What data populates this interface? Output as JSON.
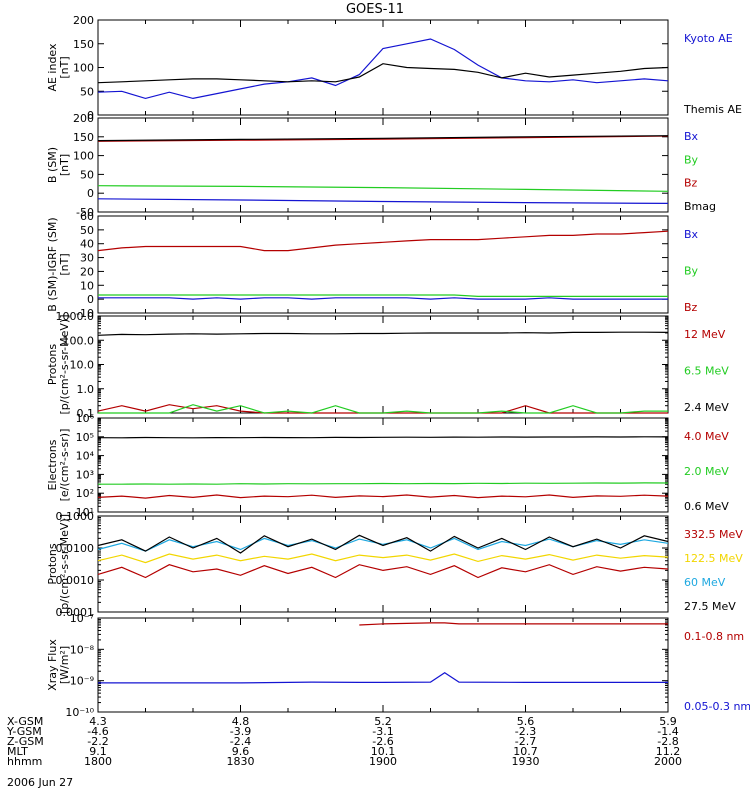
{
  "figure": {
    "title": "GOES-11",
    "date": "2006 Jun 27"
  },
  "colors": {
    "black": "#000000",
    "blue": "#1414d2",
    "red": "#b40000",
    "green": "#22cc22",
    "yellow": "#f2d600",
    "cyan": "#1ea8e0"
  },
  "orbit_table": {
    "row_labels": [
      "X-GSM",
      "Y-GSM",
      "Z-GSM",
      "MLT",
      "hhmm"
    ],
    "columns": [
      [
        "4.3",
        "-4.6",
        "-2.2",
        "9.1",
        "1800"
      ],
      [
        "4.8",
        "-3.9",
        "-2.4",
        "9.6",
        "1830"
      ],
      [
        "5.2",
        "-3.1",
        "-2.6",
        "10.1",
        "1900"
      ],
      [
        "5.6",
        "-2.3",
        "-2.7",
        "10.7",
        "1930"
      ],
      [
        "5.9",
        "-1.4",
        "-2.8",
        "11.2",
        "2000"
      ]
    ]
  },
  "chart_data": [
    {
      "type": "line",
      "id": "ae",
      "ylabel": [
        "AE index",
        "[nT]"
      ],
      "ylim": [
        0,
        200
      ],
      "scale": "linear",
      "yticks": [
        "0",
        "50",
        "100",
        "150",
        "200"
      ],
      "x": [
        1800,
        1805,
        1810,
        1815,
        1820,
        1825,
        1830,
        1835,
        1840,
        1845,
        1850,
        1855,
        1900,
        1905,
        1910,
        1915,
        1920,
        1925,
        1930,
        1935,
        1940,
        1945,
        1950,
        1955,
        2000
      ],
      "series": [
        {
          "name": "Kyoto AE",
          "color": "blue",
          "values": [
            48,
            50,
            35,
            48,
            35,
            45,
            55,
            65,
            70,
            78,
            62,
            85,
            140,
            150,
            160,
            138,
            105,
            78,
            72,
            70,
            74,
            68,
            72,
            76,
            72
          ]
        },
        {
          "name": "Themis AE",
          "color": "black",
          "values": [
            68,
            70,
            72,
            74,
            76,
            76,
            74,
            72,
            70,
            72,
            70,
            80,
            108,
            100,
            98,
            96,
            90,
            78,
            88,
            80,
            84,
            88,
            92,
            98,
            100
          ]
        }
      ]
    },
    {
      "type": "line",
      "id": "bsm",
      "ylabel": [
        "B (SM)",
        "[nT]"
      ],
      "ylim": [
        -50,
        200
      ],
      "scale": "linear",
      "yticks": [
        "-50",
        "0",
        "50",
        "100",
        "150",
        "200"
      ],
      "x": [
        1800,
        1830,
        1900,
        1930,
        2000
      ],
      "series": [
        {
          "name": "Bx",
          "color": "blue",
          "values": [
            -15,
            -18,
            -22,
            -25,
            -27
          ]
        },
        {
          "name": "By",
          "color": "green",
          "values": [
            20,
            18,
            15,
            10,
            5
          ]
        },
        {
          "name": "Bz",
          "color": "red",
          "values": [
            138,
            141,
            144,
            148,
            152
          ]
        },
        {
          "name": "Bmag",
          "color": "black",
          "values": [
            140,
            143,
            146,
            150,
            153
          ]
        }
      ]
    },
    {
      "type": "line",
      "id": "bigrf",
      "ylabel": [
        "B (SM)-IGRF (SM)",
        "[nT]"
      ],
      "ylim": [
        -10,
        60
      ],
      "scale": "linear",
      "yticks": [
        "-10",
        "0",
        "10",
        "20",
        "30",
        "40",
        "50",
        "60"
      ],
      "x": [
        1800,
        1805,
        1810,
        1815,
        1820,
        1825,
        1830,
        1835,
        1840,
        1845,
        1850,
        1855,
        1900,
        1905,
        1910,
        1915,
        1920,
        1925,
        1930,
        1935,
        1940,
        1945,
        1950,
        1955,
        2000
      ],
      "series": [
        {
          "name": "Bx",
          "color": "blue",
          "values": [
            1,
            1,
            1,
            1,
            0,
            1,
            0,
            1,
            1,
            0,
            1,
            1,
            1,
            1,
            0,
            1,
            0,
            0,
            0,
            1,
            0,
            0,
            0,
            0,
            0
          ]
        },
        {
          "name": "By",
          "color": "green",
          "values": [
            3,
            3,
            3,
            3,
            3,
            3,
            3,
            3,
            3,
            3,
            3,
            3,
            3,
            3,
            3,
            3,
            2,
            2,
            2,
            2,
            2,
            2,
            2,
            2,
            2
          ]
        },
        {
          "name": "Bz",
          "color": "red",
          "values": [
            35,
            37,
            38,
            38,
            38,
            38,
            38,
            35,
            35,
            37,
            39,
            40,
            41,
            42,
            43,
            43,
            43,
            44,
            45,
            46,
            46,
            47,
            47,
            48,
            49
          ]
        }
      ]
    },
    {
      "type": "line",
      "id": "protons_low",
      "ylabel": [
        "Protons",
        "[p/(cm²-s-sr-MeV)]"
      ],
      "ylim": [
        0.1,
        1000
      ],
      "scale": "log",
      "yticks": [
        "0.1",
        "1.0",
        "10.0",
        "100.0",
        "1000.0"
      ],
      "x": [
        1800,
        1805,
        1810,
        1815,
        1820,
        1825,
        1830,
        1835,
        1840,
        1845,
        1850,
        1855,
        1900,
        1905,
        1910,
        1915,
        1920,
        1925,
        1930,
        1935,
        1940,
        1945,
        1950,
        1955,
        2000
      ],
      "series": [
        {
          "name": "12 MeV",
          "color": "red",
          "values": [
            0.12,
            0.2,
            0.12,
            0.22,
            0.15,
            0.2,
            0.12,
            0.1,
            0.1,
            0.1,
            0.1,
            0.1,
            0.1,
            0.1,
            0.1,
            0.1,
            0.1,
            0.1,
            0.2,
            0.1,
            0.1,
            0.1,
            0.1,
            0.1,
            0.1
          ]
        },
        {
          "name": "6.5 MeV",
          "color": "green",
          "values": [
            0.1,
            0.1,
            0.1,
            0.1,
            0.22,
            0.12,
            0.2,
            0.1,
            0.12,
            0.1,
            0.2,
            0.1,
            0.1,
            0.12,
            0.1,
            0.1,
            0.1,
            0.12,
            0.1,
            0.1,
            0.2,
            0.1,
            0.1,
            0.12,
            0.12
          ]
        },
        {
          "name": "2.4 MeV",
          "color": "black",
          "values": [
            160,
            175,
            170,
            180,
            185,
            180,
            185,
            190,
            190,
            185,
            185,
            190,
            190,
            195,
            200,
            200,
            200,
            200,
            205,
            200,
            210,
            210,
            215,
            215,
            210
          ]
        }
      ]
    },
    {
      "type": "line",
      "id": "electrons",
      "ylabel": [
        "Electrons",
        "[e/(cm²-s-sr)]"
      ],
      "ylim": [
        10,
        1000000
      ],
      "scale": "log",
      "yticks": [
        "10¹",
        "10²",
        "10³",
        "10⁴",
        "10⁵",
        "10⁶"
      ],
      "x": [
        1800,
        1805,
        1810,
        1815,
        1820,
        1825,
        1830,
        1835,
        1840,
        1845,
        1850,
        1855,
        1900,
        1905,
        1910,
        1915,
        1920,
        1925,
        1930,
        1935,
        1940,
        1945,
        1950,
        1955,
        2000
      ],
      "series": [
        {
          "name": "4.0 MeV",
          "color": "red",
          "values": [
            60,
            70,
            55,
            75,
            60,
            80,
            58,
            70,
            65,
            78,
            60,
            72,
            66,
            80,
            62,
            75,
            58,
            70,
            64,
            80,
            60,
            72,
            68,
            78,
            70
          ]
        },
        {
          "name": "2.0 MeV",
          "color": "green",
          "values": [
            300,
            300,
            310,
            300,
            310,
            300,
            320,
            310,
            320,
            315,
            320,
            320,
            330,
            320,
            330,
            325,
            335,
            330,
            340,
            335,
            340,
            350,
            345,
            355,
            350
          ]
        },
        {
          "name": "0.6 MeV",
          "color": "black",
          "values": [
            90000,
            88000,
            92000,
            90000,
            89000,
            91000,
            90000,
            92000,
            91000,
            90000,
            93000,
            92000,
            94000,
            95000,
            94000,
            96000,
            95000,
            97000,
            96000,
            98000,
            97000,
            99000,
            98000,
            100000,
            99000
          ]
        }
      ]
    },
    {
      "type": "line",
      "id": "protons_high",
      "ylabel": [
        "Protons",
        "[p/(cm²-s-sr-MeV)]"
      ],
      "ylim": [
        0.0001,
        0.1
      ],
      "scale": "log",
      "yticks": [
        "0.0001",
        "0.0010",
        "0.0100",
        "0.1000"
      ],
      "x": [
        1800,
        1805,
        1810,
        1815,
        1820,
        1825,
        1830,
        1835,
        1840,
        1845,
        1850,
        1855,
        1900,
        1905,
        1910,
        1915,
        1920,
        1925,
        1930,
        1935,
        1940,
        1945,
        1950,
        1955,
        2000
      ],
      "series": [
        {
          "name": "332.5 MeV",
          "color": "red",
          "values": [
            0.0015,
            0.0025,
            0.0012,
            0.003,
            0.0018,
            0.0022,
            0.0014,
            0.0028,
            0.0016,
            0.0025,
            0.0012,
            0.003,
            0.002,
            0.0026,
            0.0015,
            0.0028,
            0.0012,
            0.0024,
            0.0018,
            0.003,
            0.0015,
            0.0026,
            0.0019,
            0.0025,
            0.0022
          ]
        },
        {
          "name": "122.5 MeV",
          "color": "yellow",
          "values": [
            0.004,
            0.006,
            0.0035,
            0.0065,
            0.0045,
            0.006,
            0.004,
            0.0055,
            0.0045,
            0.0065,
            0.004,
            0.006,
            0.005,
            0.006,
            0.0042,
            0.0065,
            0.0038,
            0.0058,
            0.0045,
            0.0062,
            0.0042,
            0.006,
            0.0048,
            0.0058,
            0.0052
          ]
        },
        {
          "name": "60 MeV",
          "color": "cyan",
          "values": [
            0.009,
            0.014,
            0.008,
            0.018,
            0.011,
            0.016,
            0.009,
            0.02,
            0.012,
            0.017,
            0.01,
            0.019,
            0.013,
            0.018,
            0.01,
            0.02,
            0.009,
            0.016,
            0.012,
            0.019,
            0.011,
            0.017,
            0.013,
            0.018,
            0.014
          ]
        },
        {
          "name": "27.5 MeV",
          "color": "black",
          "values": [
            0.012,
            0.018,
            0.008,
            0.022,
            0.01,
            0.02,
            0.007,
            0.024,
            0.011,
            0.019,
            0.009,
            0.025,
            0.012,
            0.021,
            0.008,
            0.023,
            0.01,
            0.02,
            0.009,
            0.022,
            0.011,
            0.019,
            0.01,
            0.024,
            0.016
          ]
        }
      ]
    },
    {
      "type": "line",
      "id": "xray",
      "ylabel": [
        "Xray Flux",
        "[W/m²]"
      ],
      "ylim": [
        1e-10,
        1e-07
      ],
      "scale": "log",
      "yticks": [
        "10⁻¹⁰",
        "10⁻⁹",
        "10⁻⁸",
        "10⁻⁷"
      ],
      "x": [
        1800,
        1830,
        1845,
        1855,
        1900,
        1910,
        1913,
        1916,
        1930,
        2000
      ],
      "series": [
        {
          "name": "0.1-0.8 nm",
          "color": "red",
          "values": [
            null,
            null,
            null,
            6e-08,
            6.5e-08,
            7e-08,
            7e-08,
            6.5e-08,
            6.5e-08,
            6.5e-08
          ]
        },
        {
          "name": "0.05-0.3 nm",
          "color": "blue",
          "values": [
            8.5e-10,
            8.5e-10,
            9e-10,
            8.8e-10,
            8.8e-10,
            9e-10,
            1.8e-09,
            9e-10,
            8.8e-10,
            8.8e-10
          ]
        }
      ]
    }
  ]
}
